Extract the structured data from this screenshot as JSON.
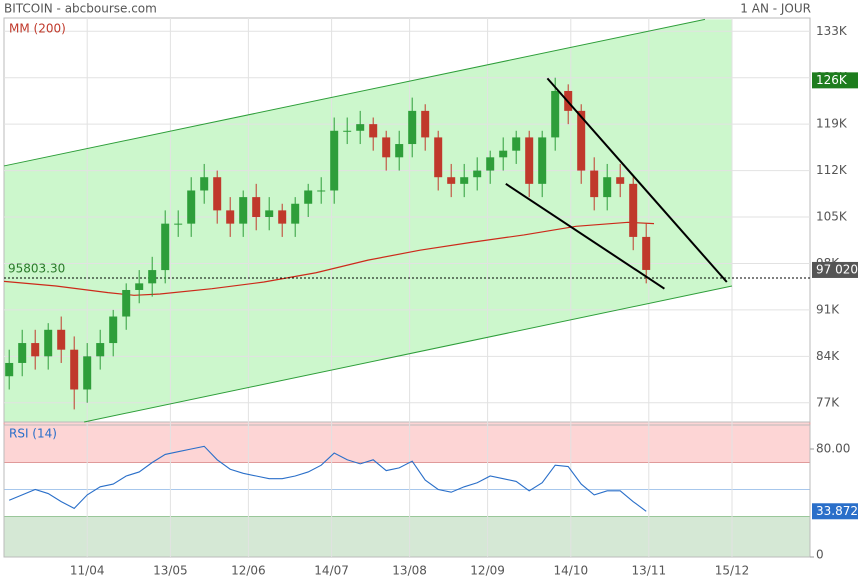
{
  "header": {
    "title": "BITCOIN - abcbourse.com",
    "period": "1 AN - JOUR"
  },
  "chart_data": [
    {
      "type": "candlestick",
      "overlay_label": "MM (200)",
      "xlim": [
        0,
        310
      ],
      "xticks": [
        {
          "value": 32,
          "label": "11/04"
        },
        {
          "value": 64,
          "label": "13/05"
        },
        {
          "value": 94,
          "label": "12/06"
        },
        {
          "value": 126,
          "label": "14/07"
        },
        {
          "value": 156,
          "label": "13/08"
        },
        {
          "value": 186,
          "label": "12/09"
        },
        {
          "value": 218,
          "label": "14/10"
        },
        {
          "value": 248,
          "label": "13/11"
        },
        {
          "value": 280,
          "label": "15/12"
        }
      ],
      "ylim": [
        74.1,
        135
      ],
      "yticks": [
        {
          "value": 77,
          "label": "77K"
        },
        {
          "value": 84,
          "label": "84K"
        },
        {
          "value": 91,
          "label": "91K"
        },
        {
          "value": 98,
          "label": "98K"
        },
        {
          "value": 105,
          "label": "105K"
        },
        {
          "value": 112,
          "label": "112K"
        },
        {
          "value": 119,
          "label": "119K"
        },
        {
          "value": 126,
          "label": "126K"
        },
        {
          "value": 133,
          "label": "133K"
        }
      ],
      "up_color": "#2e9e3a",
      "down_color": "#c0392b",
      "x": [
        2,
        7,
        12,
        17,
        22,
        27,
        32,
        37,
        42,
        47,
        52,
        57,
        62,
        67,
        72,
        77,
        82,
        87,
        92,
        97,
        102,
        107,
        112,
        117,
        122,
        127,
        132,
        137,
        142,
        147,
        152,
        157,
        162,
        167,
        172,
        177,
        182,
        187,
        192,
        197,
        202,
        207,
        212,
        217,
        222,
        227,
        232,
        237,
        242,
        247
      ],
      "open": [
        81,
        83,
        86,
        84,
        88,
        85,
        79,
        84,
        86,
        90,
        94,
        95,
        97,
        104,
        104,
        109,
        111,
        106,
        104,
        108,
        105,
        106,
        104,
        107,
        109,
        109,
        118,
        118,
        119,
        117,
        114,
        116,
        121,
        117,
        111,
        110,
        111,
        112,
        114,
        115,
        117,
        110,
        117,
        124,
        121,
        112,
        108,
        111,
        110,
        102
      ],
      "high": [
        85,
        88,
        88,
        89,
        90,
        87,
        86,
        88,
        91,
        95,
        97,
        99,
        106,
        106,
        111,
        113,
        112,
        108,
        109,
        110,
        108,
        107,
        108,
        110,
        111,
        120,
        120,
        121,
        120,
        118,
        118,
        123,
        122,
        118,
        113,
        113,
        114,
        115,
        117,
        118,
        118,
        118,
        126,
        125,
        122,
        114,
        113,
        113,
        111,
        104
      ],
      "low": [
        79,
        81,
        82,
        82,
        83,
        76,
        77,
        82,
        84,
        88,
        92,
        93,
        95,
        102,
        102,
        107,
        104,
        102,
        102,
        103,
        103,
        102,
        102,
        105,
        107,
        107,
        116,
        116,
        115,
        112,
        112,
        114,
        115,
        109,
        108,
        108,
        109,
        110,
        112,
        113,
        108,
        108,
        115,
        119,
        110,
        106,
        106,
        108,
        100,
        95
      ],
      "close": [
        83,
        86,
        84,
        88,
        85,
        79,
        84,
        86,
        90,
        94,
        95,
        97,
        104,
        104,
        109,
        111,
        106,
        104,
        108,
        105,
        106,
        104,
        107,
        109,
        109,
        118,
        118,
        119,
        117,
        114,
        116,
        121,
        117,
        111,
        110,
        111,
        112,
        114,
        115,
        117,
        110,
        117,
        124,
        121,
        112,
        108,
        111,
        110,
        102,
        97.02
      ],
      "moving_average": {
        "color": "#cc2a1a",
        "x": [
          0,
          20,
          40,
          50,
          60,
          80,
          100,
          120,
          140,
          160,
          180,
          200,
          220,
          240,
          250
        ],
        "values": [
          95.3,
          94.6,
          93.6,
          93.2,
          93.4,
          94.2,
          95.2,
          96.6,
          98.5,
          100.0,
          101.2,
          102.3,
          103.6,
          104.2,
          104.0
        ]
      },
      "channel": {
        "color": "#2e9e3a",
        "fill": "#ccf7cc",
        "upper": {
          "x": [
            0,
            269.6
          ],
          "y": [
            112.7,
            134.8
          ]
        },
        "lower": {
          "x": [
            30.8,
            280
          ],
          "y": [
            74.1,
            94.6
          ]
        }
      },
      "wedge": {
        "color": "#000000",
        "upper": {
          "x": [
            209,
            278
          ],
          "y": [
            125.9,
            95.2
          ]
        },
        "lower": {
          "x": [
            193,
            254
          ],
          "y": [
            110,
            94.2
          ]
        }
      },
      "reference": {
        "value": 95.8033,
        "label": "95803.30"
      },
      "last_price": {
        "value": 97.02,
        "label": "97 020"
      },
      "high_marker": {
        "value": 125.6,
        "label": "126K"
      }
    },
    {
      "type": "line",
      "title": "RSI (14)",
      "ylim": [
        0,
        100
      ],
      "yticks": [
        0,
        {
          "value": 80,
          "label": "80.00"
        }
      ],
      "bands": {
        "upper": [
          70,
          100
        ],
        "lower": [
          0,
          30
        ],
        "midline": 50
      },
      "series": [
        {
          "name": "RSI (14)",
          "color": "#2a6fc9",
          "values": [
            42,
            46,
            50,
            47,
            41,
            36,
            46,
            52,
            54,
            60,
            63,
            70,
            76,
            78,
            80,
            82,
            72,
            65,
            62,
            60,
            58,
            58,
            60,
            63,
            68,
            77,
            72,
            69,
            72,
            64,
            66,
            71,
            57,
            50,
            48,
            52,
            55,
            60,
            58,
            56,
            49,
            55,
            68,
            67,
            54,
            46,
            49,
            49,
            41,
            33.872
          ]
        }
      ]
    }
  ]
}
